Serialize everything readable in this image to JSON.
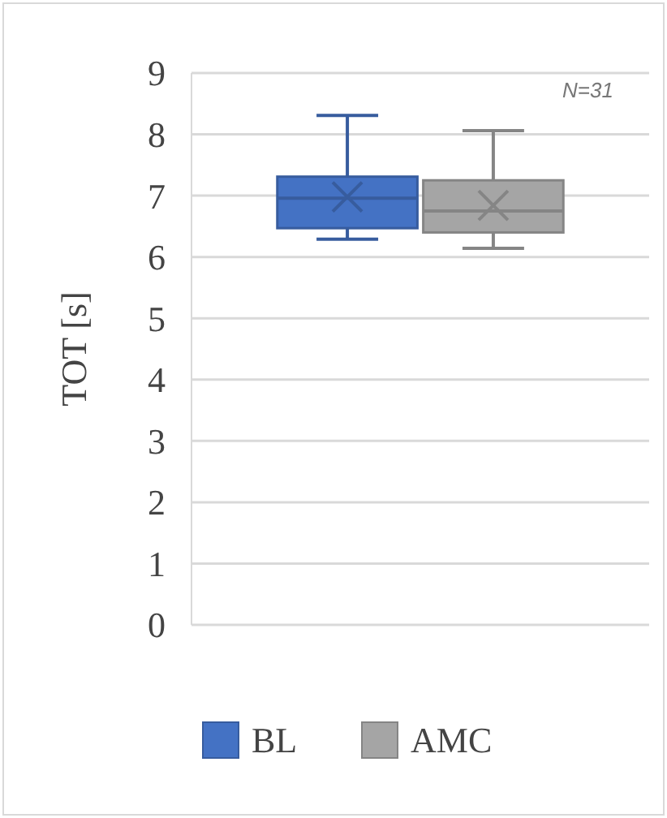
{
  "chart_data": {
    "type": "box",
    "ylabel": "TOT [s]",
    "categories": [
      null
    ],
    "ylim": [
      0,
      9
    ],
    "yticks": [
      0,
      1,
      2,
      3,
      4,
      5,
      6,
      7,
      8,
      9
    ],
    "grid": "y",
    "legend": "bottom",
    "annotations": [
      "N=31"
    ],
    "series": [
      {
        "name": "BL",
        "color": "#4472c4",
        "boxes": [
          {
            "low": 6.29,
            "q1": 6.47,
            "median": 6.96,
            "q3": 7.31,
            "high": 8.31,
            "mean": 6.98
          }
        ]
      },
      {
        "name": "AMC",
        "color": "#a5a5a5",
        "boxes": [
          {
            "low": 6.14,
            "q1": 6.4,
            "median": 6.75,
            "q3": 7.25,
            "high": 8.06,
            "mean": 6.84
          }
        ]
      }
    ]
  }
}
